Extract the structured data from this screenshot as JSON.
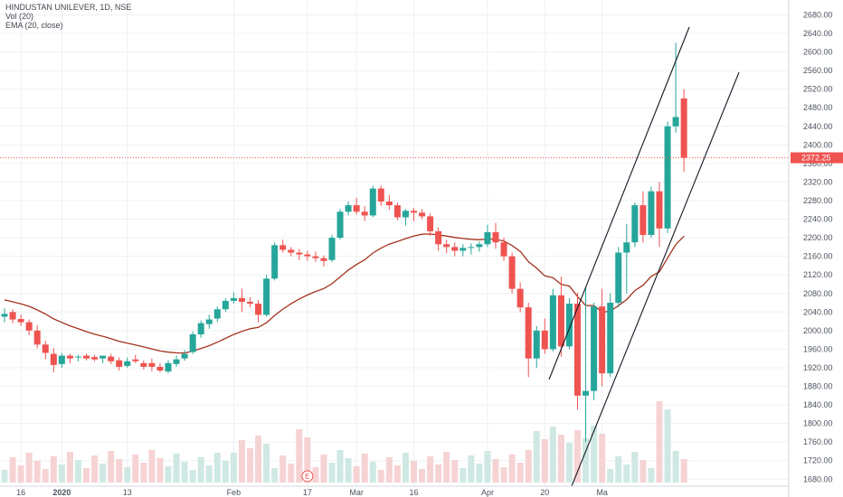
{
  "header": {
    "symbol_line": "HINDUSTAN UNILEVER, 1D, NSE",
    "vol_line": "Vol (20)",
    "ema_line": "EMA (20, close)"
  },
  "price_tag": "2372.25",
  "event_marker": "E",
  "colors": {
    "up": "#26a69a",
    "down": "#ef5350",
    "vol_up": "#cfe8e3",
    "vol_down": "#f6d3d3",
    "ema": "#a5321e",
    "trendline": "#131722",
    "price_line": "#ef5350",
    "grid": "#edf0f3",
    "axis_text": "#4c525e"
  },
  "chart_data": {
    "type": "candlestick",
    "symbol": "HINDUSTAN UNILEVER",
    "interval": "1D",
    "exchange": "NSE",
    "y_axis_ticks": [
      1680,
      1720,
      1760,
      1800,
      1840,
      1880,
      1920,
      1960,
      2000,
      2040,
      2080,
      2120,
      2160,
      2200,
      2240,
      2280,
      2320,
      2360,
      2400,
      2440,
      2480,
      2520,
      2560,
      2600,
      2640,
      2680
    ],
    "y_range": [
      1665,
      2712
    ],
    "x_ticks": [
      {
        "label": "16",
        "index": 2
      },
      {
        "label": "2020",
        "index": 7
      },
      {
        "label": "13",
        "index": 15
      },
      {
        "label": "Feb",
        "index": 28
      },
      {
        "label": "17",
        "index": 37
      },
      {
        "label": "Mar",
        "index": 43
      },
      {
        "label": "16",
        "index": 50
      },
      {
        "label": "Apr",
        "index": 59
      },
      {
        "label": "20",
        "index": 66
      },
      {
        "label": "Ma",
        "index": 73
      }
    ],
    "last_price": 2372.25,
    "candles": [
      {
        "o": 2030,
        "h": 2048,
        "l": 2018,
        "c": 2036
      },
      {
        "o": 2040,
        "h": 2046,
        "l": 2016,
        "c": 2024
      },
      {
        "o": 2025,
        "h": 2034,
        "l": 2010,
        "c": 2018
      },
      {
        "o": 2018,
        "h": 2024,
        "l": 1990,
        "c": 2000
      },
      {
        "o": 2000,
        "h": 2012,
        "l": 1962,
        "c": 1970
      },
      {
        "o": 1970,
        "h": 1978,
        "l": 1938,
        "c": 1952
      },
      {
        "o": 1950,
        "h": 1962,
        "l": 1910,
        "c": 1926
      },
      {
        "o": 1928,
        "h": 1952,
        "l": 1920,
        "c": 1946
      },
      {
        "o": 1946,
        "h": 1950,
        "l": 1930,
        "c": 1940
      },
      {
        "o": 1942,
        "h": 1948,
        "l": 1934,
        "c": 1944
      },
      {
        "o": 1946,
        "h": 1950,
        "l": 1936,
        "c": 1940
      },
      {
        "o": 1943,
        "h": 1948,
        "l": 1934,
        "c": 1938
      },
      {
        "o": 1940,
        "h": 1946,
        "l": 1930,
        "c": 1946
      },
      {
        "o": 1944,
        "h": 1950,
        "l": 1928,
        "c": 1934
      },
      {
        "o": 1936,
        "h": 1942,
        "l": 1914,
        "c": 1922
      },
      {
        "o": 1924,
        "h": 1942,
        "l": 1920,
        "c": 1934
      },
      {
        "o": 1938,
        "h": 1948,
        "l": 1930,
        "c": 1934
      },
      {
        "o": 1930,
        "h": 1936,
        "l": 1916,
        "c": 1922
      },
      {
        "o": 1930,
        "h": 1940,
        "l": 1912,
        "c": 1922
      },
      {
        "o": 1922,
        "h": 1930,
        "l": 1910,
        "c": 1914
      },
      {
        "o": 1912,
        "h": 1936,
        "l": 1908,
        "c": 1930
      },
      {
        "o": 1928,
        "h": 1946,
        "l": 1922,
        "c": 1938
      },
      {
        "o": 1940,
        "h": 1958,
        "l": 1935,
        "c": 1950
      },
      {
        "o": 1954,
        "h": 1998,
        "l": 1950,
        "c": 1992
      },
      {
        "o": 1992,
        "h": 2022,
        "l": 1985,
        "c": 2016
      },
      {
        "o": 2014,
        "h": 2034,
        "l": 2004,
        "c": 2024
      },
      {
        "o": 2026,
        "h": 2052,
        "l": 2018,
        "c": 2046
      },
      {
        "o": 2046,
        "h": 2070,
        "l": 2040,
        "c": 2064
      },
      {
        "o": 2064,
        "h": 2082,
        "l": 2058,
        "c": 2070
      }
    ]
  }
}
